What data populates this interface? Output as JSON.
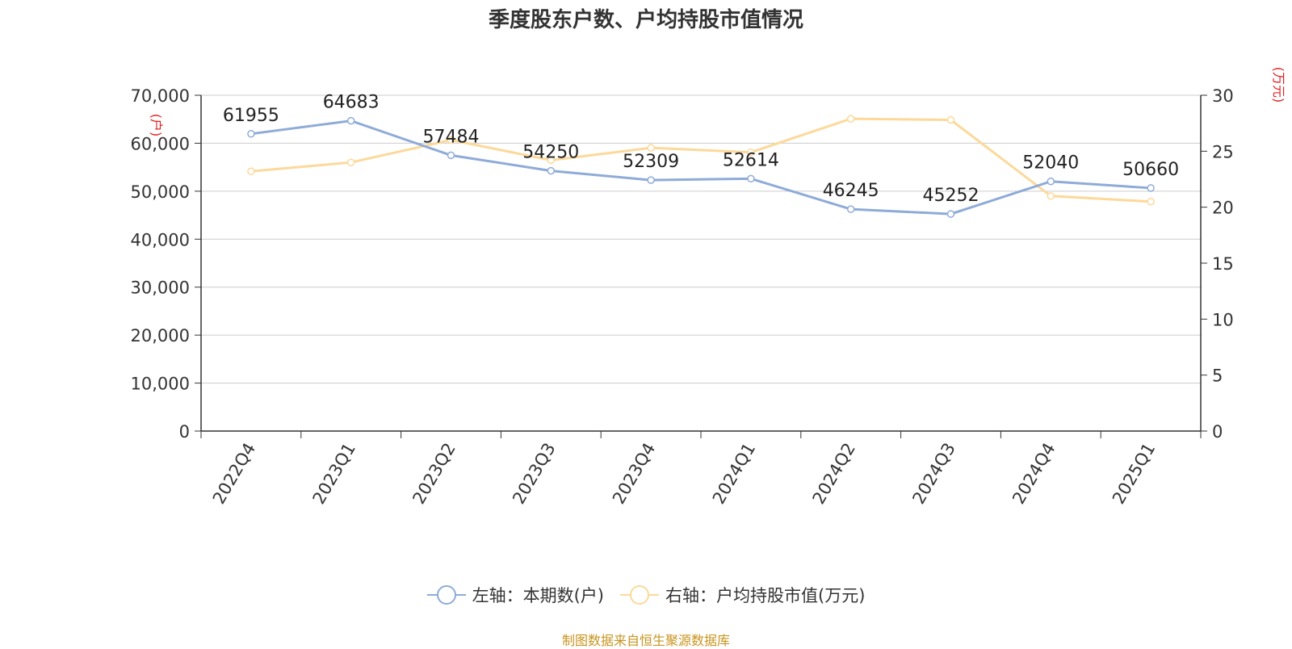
{
  "title": "季度股东户数、户均持股市值情况",
  "source": "制图数据来自恒生聚源数据库",
  "colors": {
    "left_series": "#8eabd8",
    "right_series": "#fcd99a",
    "axis_unit": "#e02020",
    "source": "#c8941e"
  },
  "chart_data": {
    "type": "line",
    "categories": [
      "2022Q4",
      "2023Q1",
      "2023Q2",
      "2023Q3",
      "2023Q4",
      "2024Q1",
      "2024Q2",
      "2024Q3",
      "2024Q4",
      "2025Q1"
    ],
    "series": [
      {
        "name": "左轴：本期数(户)",
        "axis": "left",
        "values": [
          61955,
          64683,
          57484,
          54250,
          52309,
          52614,
          46245,
          45252,
          52040,
          50660
        ],
        "data_labels": [
          "61955",
          "64683",
          "57484",
          "54250",
          "52309",
          "52614",
          "46245",
          "45252",
          "52040",
          "50660"
        ]
      },
      {
        "name": "右轴：户均持股市值(万元)",
        "axis": "right",
        "values": [
          23.2,
          24.0,
          26.0,
          24.2,
          25.3,
          24.9,
          27.9,
          27.8,
          21.0,
          20.5
        ]
      }
    ],
    "left_axis": {
      "unit": "(户)",
      "ylim": [
        0,
        70000
      ],
      "ticks": [
        0,
        10000,
        20000,
        30000,
        40000,
        50000,
        60000,
        70000
      ],
      "tick_labels": [
        "0",
        "10,000",
        "20,000",
        "30,000",
        "40,000",
        "50,000",
        "60,000",
        "70,000"
      ]
    },
    "right_axis": {
      "unit": "(万元)",
      "ylim": [
        0,
        30
      ],
      "ticks": [
        0,
        5,
        10,
        15,
        20,
        25,
        30
      ],
      "tick_labels": [
        "0",
        "5",
        "10",
        "15",
        "20",
        "25",
        "30"
      ]
    },
    "grid": true,
    "legend_position": "bottom"
  }
}
